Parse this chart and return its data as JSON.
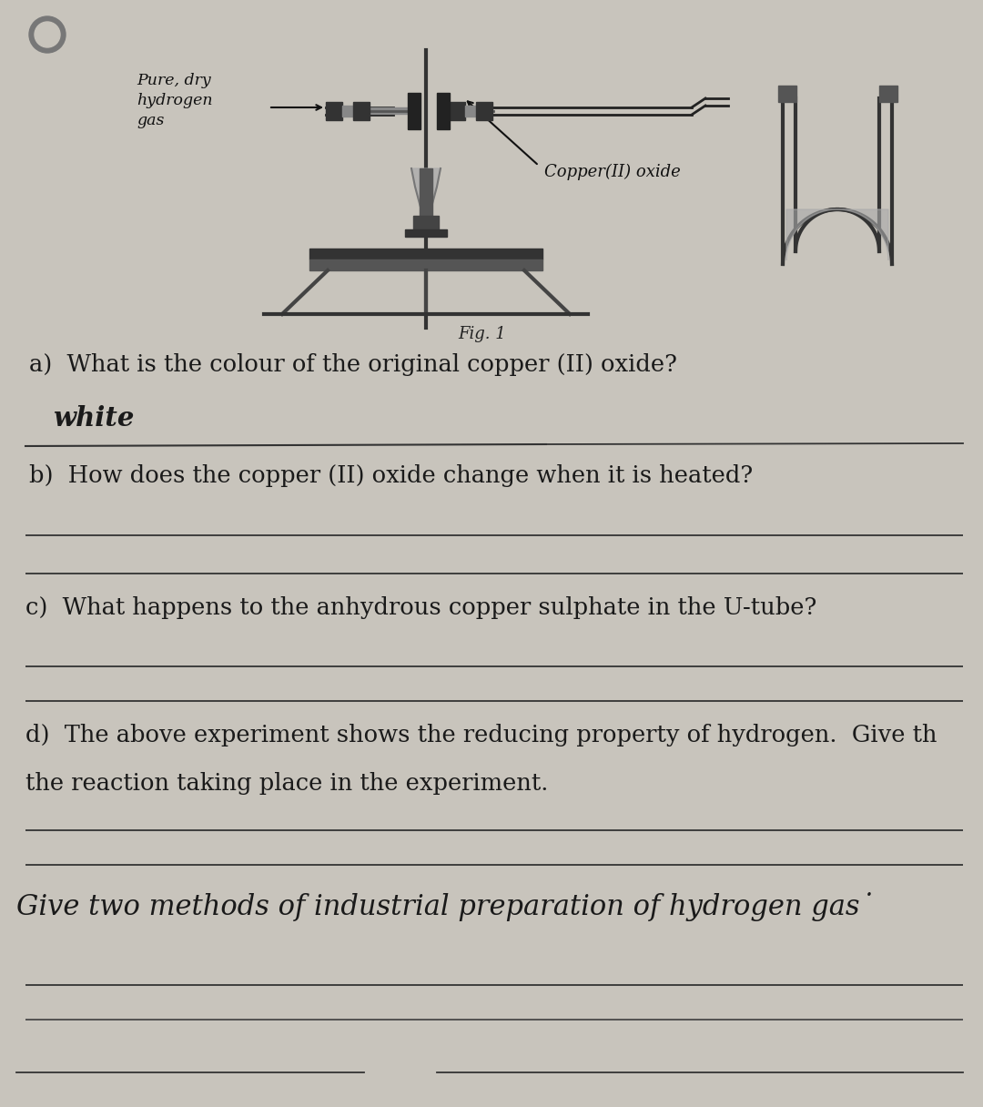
{
  "bg_color": "#c8c4bc",
  "text_color": "#1a1a1a",
  "fig_caption": "Fig. 1",
  "diagram_label_hydrogen": "Pure, dry\nhydrogen\ngas",
  "diagram_label_copper": "Copper(II) oxide",
  "question_a": "a)  What is the colour of the original copper (II) oxide?",
  "answer_a": "white",
  "question_b": "b)  How does the copper (II) oxide change when it is heated?",
  "question_c": "c)  What happens to the anhydrous copper sulphate in the U-tube?",
  "question_d": "d)  The above experiment shows the reducing property of hydrogen.  Give th",
  "question_d2": "the reaction taking place in the experiment.",
  "question_e": "Give two methods of industrial preparation of hydrogen gas˙",
  "hole_color": "#6a6a6a",
  "line_color": "#444444",
  "diagram_bg": "#b8b4ac"
}
